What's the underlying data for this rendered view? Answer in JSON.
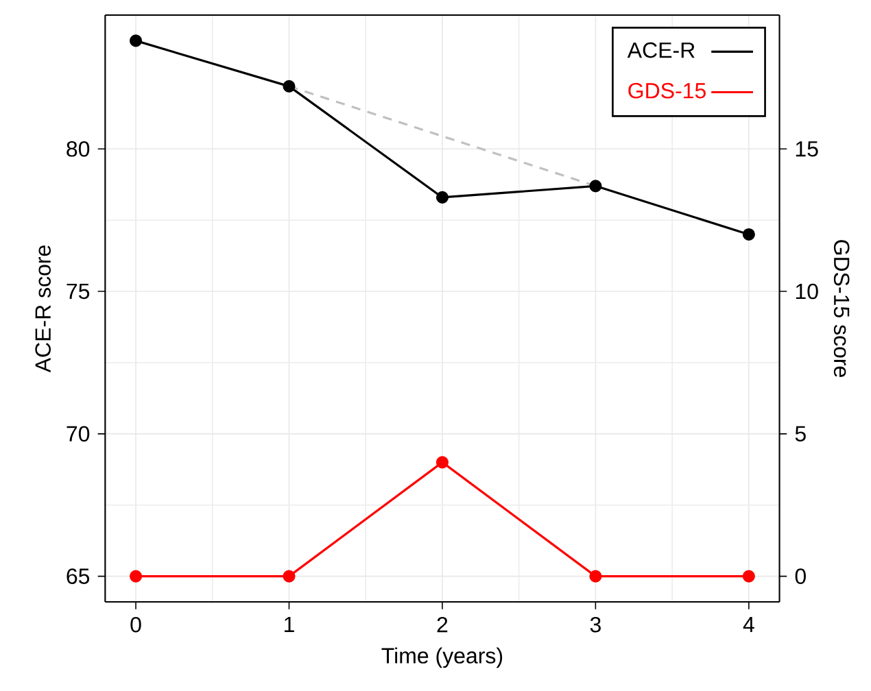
{
  "chart_data": {
    "type": "line",
    "xlabel": "Time (years)",
    "ylabel": "ACE-R score",
    "y2label": "GDS-15 score",
    "x": [
      0,
      1,
      2,
      3,
      4
    ],
    "series": [
      {
        "name": "ACE-R",
        "color": "#000000",
        "values": [
          83.8,
          82.2,
          78.3,
          78.7,
          77.0
        ]
      },
      {
        "name": "GDS-15",
        "color": "#ff0000",
        "axis": "y2",
        "values": [
          0,
          0,
          4,
          0,
          0
        ]
      },
      {
        "color": "#c0c0c0",
        "x": [
          1,
          3
        ],
        "values": [
          82.2,
          78.7
        ],
        "line_style": "dashed",
        "marker": "none"
      }
    ],
    "xlim": [
      -0.2,
      4.2
    ],
    "ylim": [
      64.1,
      84.7
    ],
    "y2lim": [
      -0.9,
      19.7
    ],
    "xticks": [
      0,
      1,
      2,
      3,
      4
    ],
    "yticks": [
      65,
      70,
      75,
      80
    ],
    "y2ticks": [
      0,
      5,
      10,
      15
    ],
    "grid": true,
    "legend": "top right",
    "marker": "circle",
    "line_style": "solid"
  }
}
